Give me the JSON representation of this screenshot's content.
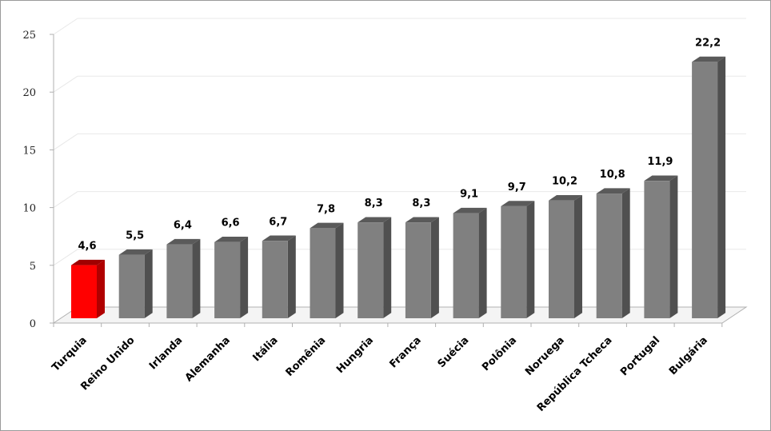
{
  "chart_data": {
    "type": "bar",
    "categories": [
      "Turquia",
      "Reino Unido",
      "Irlanda",
      "Alemanha",
      "Itália",
      "Romênia",
      "Hungria",
      "França",
      "Suécia",
      "Polônia",
      "Noruega",
      "República Tcheca",
      "Portugal",
      "Bulgária"
    ],
    "values": [
      4.6,
      5.5,
      6.4,
      6.6,
      6.7,
      7.8,
      8.3,
      8.3,
      9.1,
      9.7,
      10.2,
      10.8,
      11.9,
      22.2
    ],
    "value_labels": [
      "4,6",
      "5,5",
      "6,4",
      "6,6",
      "6,7",
      "7,8",
      "8,3",
      "8,3",
      "9,1",
      "9,7",
      "10,2",
      "10,8",
      "11,9",
      "22,2"
    ],
    "highlight_index": 0,
    "ylim": [
      0,
      25
    ],
    "y_ticks": [
      "0",
      "5",
      "10",
      "15",
      "20",
      "25"
    ],
    "y_tick_values": [
      0,
      5,
      10,
      15,
      20,
      25
    ],
    "grid": true,
    "title": "",
    "xlabel": "",
    "ylabel": "",
    "colors": {
      "bar_front": "#808080",
      "bar_top": "#5a5a5a",
      "bar_side": "#505050",
      "highlight_front": "#ff0000",
      "highlight_top": "#a00000",
      "highlight_side": "#b00000",
      "highlight_label": "#ff0000",
      "grid": "#e8e8e8",
      "axis": "#b0b0b0"
    }
  }
}
